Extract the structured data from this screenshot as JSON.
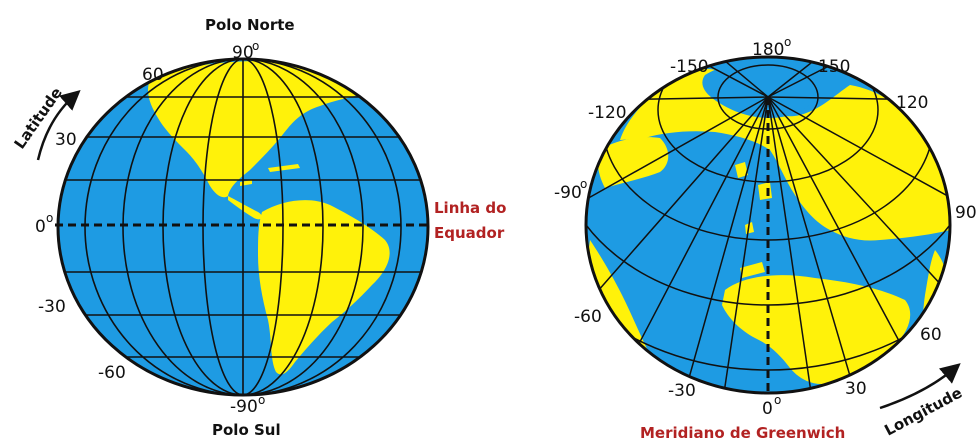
{
  "colors": {
    "ocean": "#1e9be3",
    "land": "#fff20a",
    "lines": "#111111",
    "highlight": "#b22222"
  },
  "left_globe": {
    "north_pole": "Polo Norte",
    "south_pole": "Polo Sul",
    "equator_line1": "Linha do",
    "equator_line2": "Equador",
    "axis_label": "Latitude",
    "lat_90": "90",
    "lat_60": "60",
    "lat_30": "30",
    "lat_0": "0",
    "lat_m30": "-30",
    "lat_m60": "-60",
    "lat_m90": "-90",
    "degree": "o"
  },
  "right_globe": {
    "meridian_label": "Meridiano de Greenwich",
    "axis_label": "Longitude",
    "lon_180": "180",
    "lon_m150": "-150",
    "lon_150": "150",
    "lon_m120": "-120",
    "lon_120": "120",
    "lon_m90": "-90",
    "lon_90": "90",
    "lon_m60": "-60",
    "lon_60": "60",
    "lon_m30": "-30",
    "lon_30": "30",
    "lon_0": "0",
    "degree": "o"
  }
}
